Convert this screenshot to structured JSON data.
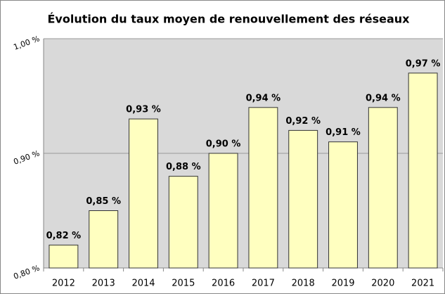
{
  "chart_data": {
    "type": "bar",
    "title": "Évolution du taux moyen de renouvellement des réseaux",
    "categories": [
      "2012",
      "2013",
      "2014",
      "2015",
      "2016",
      "2017",
      "2018",
      "2019",
      "2020",
      "2021"
    ],
    "values": [
      0.82,
      0.85,
      0.93,
      0.88,
      0.9,
      0.94,
      0.92,
      0.91,
      0.94,
      0.97
    ],
    "value_labels": [
      "0,82 %",
      "0,85 %",
      "0,93 %",
      "0,88 %",
      "0,90 %",
      "0,94 %",
      "0,92 %",
      "0,91 %",
      "0,94 %",
      "0,97 %"
    ],
    "color": "#ffffc0",
    "ylim": [
      0.8,
      1.0
    ],
    "yticks": [
      {
        "value": 0.8,
        "label": "0,80 %"
      },
      {
        "value": 0.9,
        "label": "0,90 %"
      },
      {
        "value": 1.0,
        "label": "1,00 %"
      }
    ],
    "grid": true
  }
}
